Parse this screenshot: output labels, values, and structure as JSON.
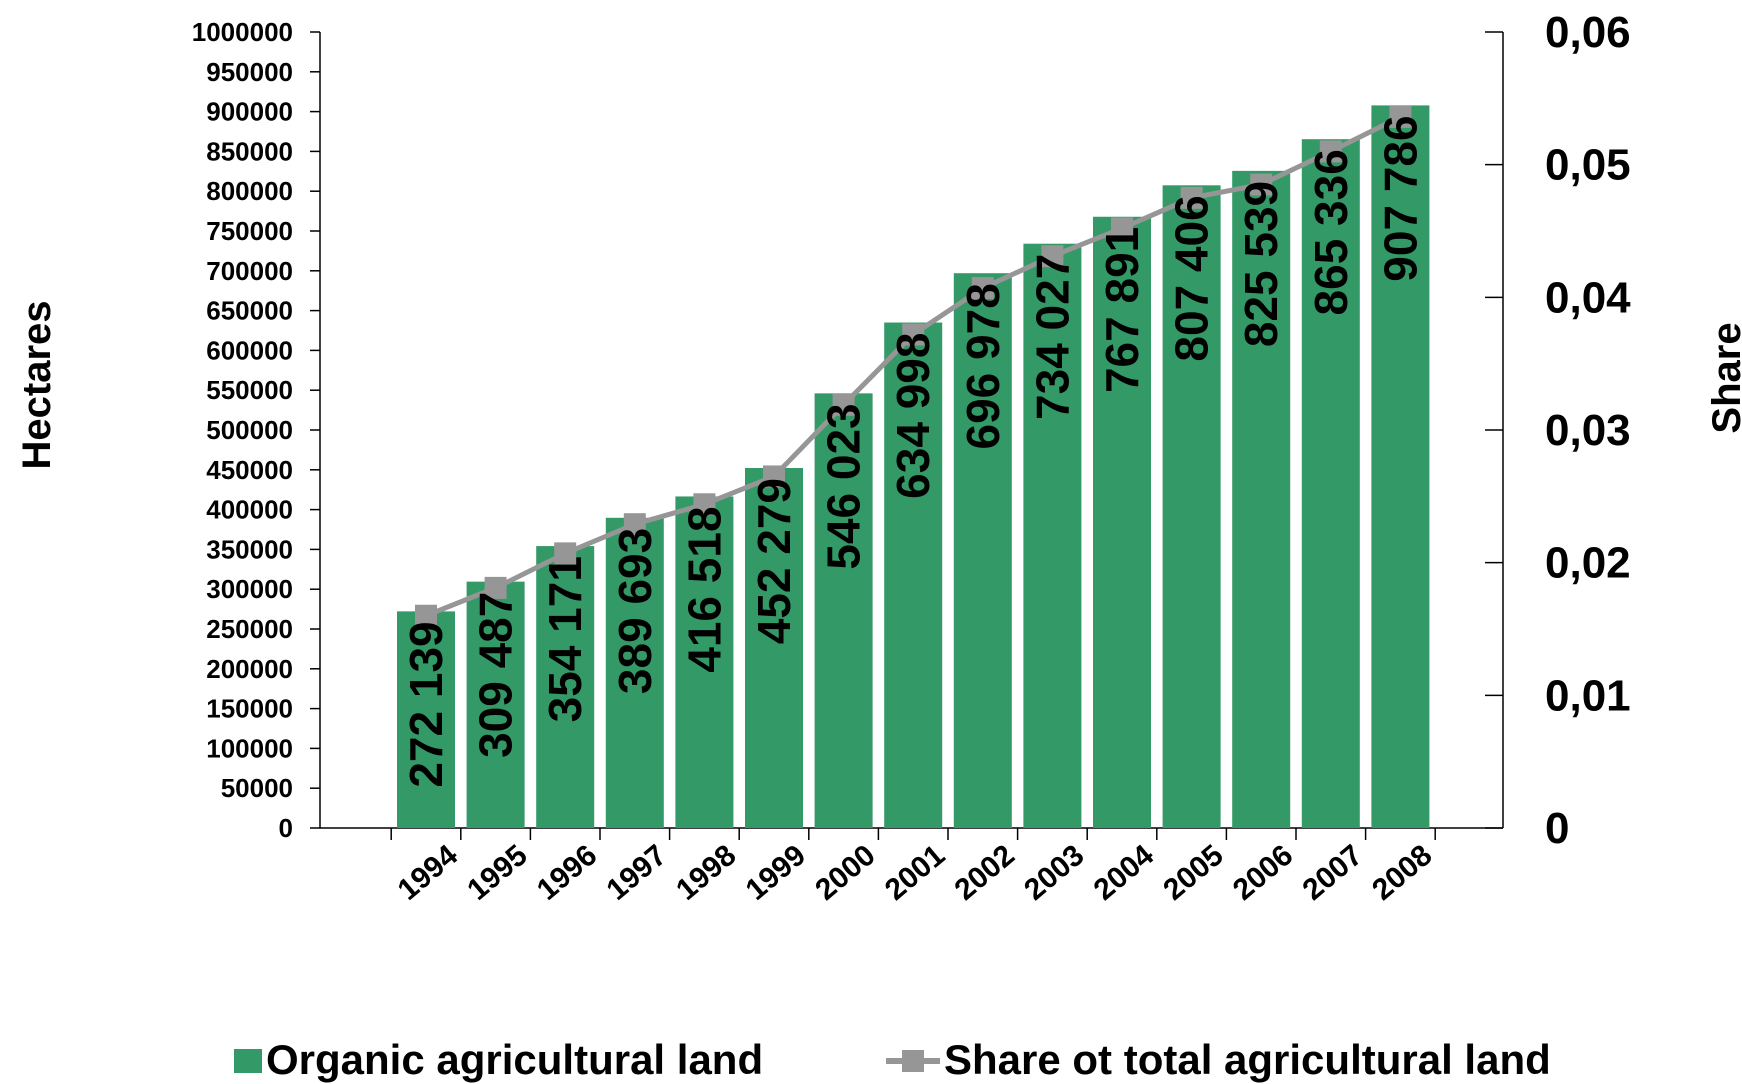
{
  "chart_data": {
    "type": "bar",
    "categories": [
      "1994",
      "1995",
      "1996",
      "1997",
      "1998",
      "1999",
      "2000",
      "2001",
      "2002",
      "2003",
      "2004",
      "2005",
      "2006",
      "2007",
      "2008"
    ],
    "series": [
      {
        "name": "Organic agricultural land",
        "type": "bar",
        "axis": "left",
        "color": "#339966",
        "values": [
          272139,
          309487,
          354171,
          389693,
          416518,
          452279,
          546023,
          634998,
          696978,
          734027,
          767891,
          807406,
          825539,
          865336,
          907786
        ],
        "data_labels": [
          "272 139",
          "309 487",
          "354 171",
          "389 693",
          "416 518",
          "452 279",
          "546 023",
          "634 998",
          "696 978",
          "734 027",
          "767 891",
          "807 406",
          "825 539",
          "865 336",
          "907 786"
        ]
      },
      {
        "name": "Share ot total agricultural land",
        "type": "line",
        "axis": "right",
        "color": "#969696",
        "values": [
          0.016,
          0.0181,
          0.0207,
          0.0229,
          0.0244,
          0.0265,
          0.0319,
          0.0372,
          0.0407,
          0.0431,
          0.0452,
          0.0475,
          0.0485,
          0.051,
          0.0536
        ]
      }
    ],
    "ylabel_left": "Hectares",
    "ylabel_right": "Share",
    "ylim_left": [
      0,
      1000000
    ],
    "ylim_right": [
      0,
      0.06
    ],
    "yticks_left": [
      "0",
      "50000",
      "100000",
      "150000",
      "200000",
      "250000",
      "300000",
      "350000",
      "400000",
      "450000",
      "500000",
      "550000",
      "600000",
      "650000",
      "700000",
      "750000",
      "800000",
      "850000",
      "900000",
      "950000",
      "1000000"
    ],
    "yticks_right": [
      "0",
      "0,01",
      "0,02",
      "0,03",
      "0,04",
      "0,05",
      "0,06"
    ],
    "legend_position": "bottom",
    "grid": false
  }
}
